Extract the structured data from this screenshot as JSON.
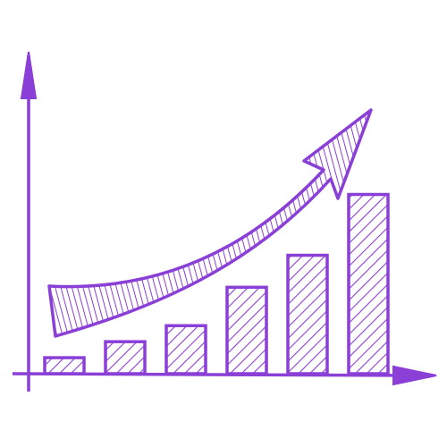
{
  "chart_data": {
    "type": "bar",
    "categories": [
      null,
      null,
      null,
      null,
      null,
      null
    ],
    "values": [
      5,
      10,
      15,
      27,
      37,
      56
    ],
    "color": "#8a3fd6",
    "ylim": [
      0,
      100
    ]
  }
}
